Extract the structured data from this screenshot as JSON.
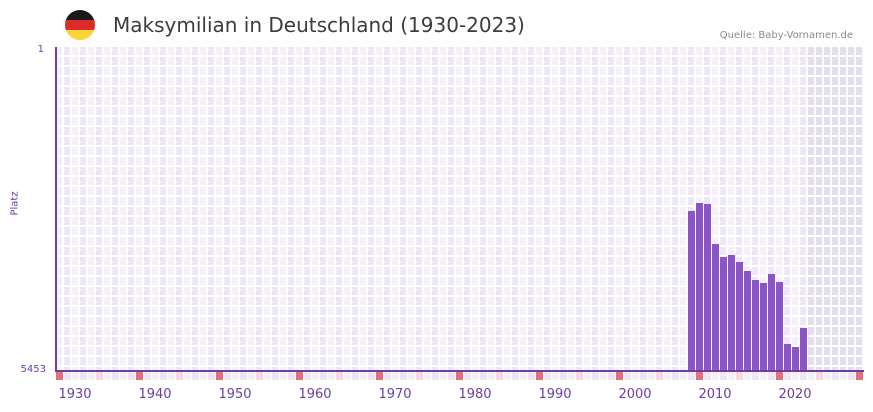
{
  "header": {
    "title": "Maksymilian in Deutschland (1930-2023)",
    "source": "Quelle: Baby-Vornamen.de",
    "flag_colors": [
      "#1a1a1a",
      "#dd2a2a",
      "#fdd23a"
    ]
  },
  "axis": {
    "y_title": "Platz",
    "y_top_label": "1",
    "y_bottom_label": "5453",
    "x_labels": [
      "1930",
      "1940",
      "1950",
      "1960",
      "1970",
      "1980",
      "1990",
      "2000",
      "2010",
      "2020"
    ]
  },
  "colors": {
    "bar": "#8b55c8",
    "axis": "#6b3fa0",
    "grid_a": "#f3effb",
    "grid_b": "#ece6f7",
    "future_shade": "#e3dfee",
    "marker_strong": "#e5707a",
    "marker_light": "#f5d8e0"
  },
  "chart_data": {
    "type": "bar",
    "title": "Maksymilian in Deutschland (1930-2023)",
    "xlabel": "",
    "ylabel": "Platz",
    "y_inverted": true,
    "ylim": [
      1,
      5453
    ],
    "xlim": [
      1928,
      2028
    ],
    "grid": true,
    "legend": null,
    "source": "Quelle: Baby-Vornamen.de",
    "categories": [
      "2007",
      "2008",
      "2009",
      "2010",
      "2011",
      "2012",
      "2013",
      "2014",
      "2015",
      "2016",
      "2017",
      "2018",
      "2019",
      "2020",
      "2021"
    ],
    "values": [
      2744,
      2608,
      2625,
      3306,
      3528,
      3494,
      3613,
      3766,
      3920,
      3971,
      3817,
      3954,
      5010,
      5061,
      4738
    ],
    "shaded_future_from": 2022
  }
}
